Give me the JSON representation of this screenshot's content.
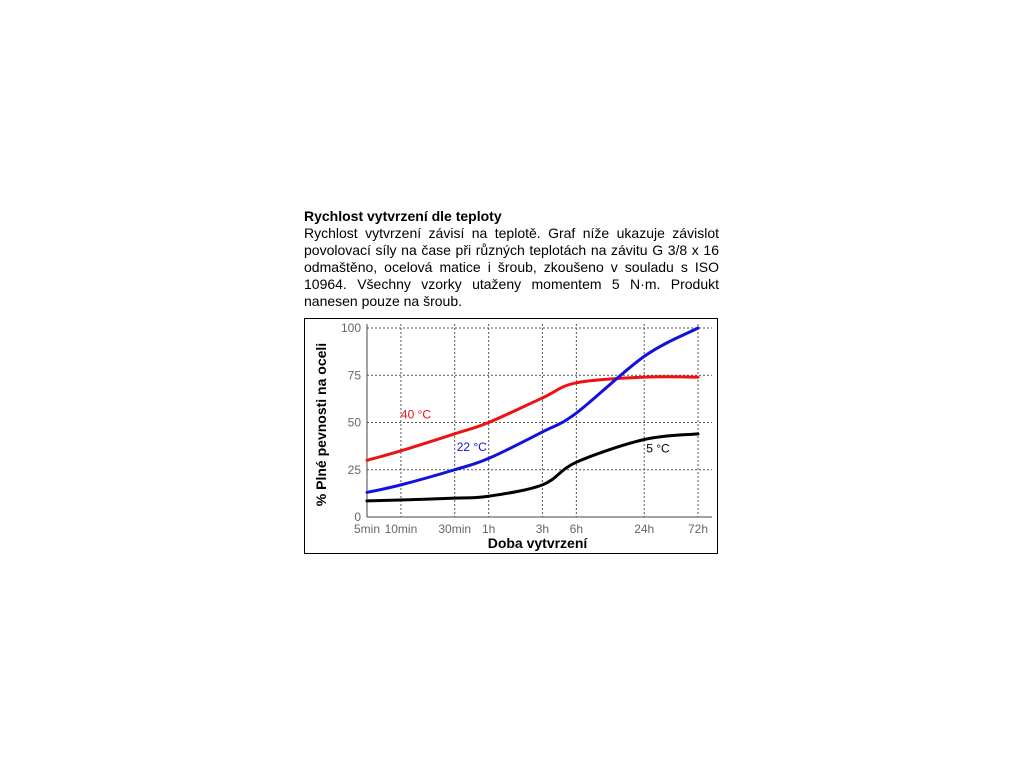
{
  "document": {
    "heading": "Rychlost vytvrzení dle teploty",
    "paragraph": "Rychlost vytvrzení závisí na teplotě. Graf níže ukazuje závislot povolovací síly na čase při různých teplotách na  závitu G 3/8 x 16 odmaštěno, ocelová matice i šroub, zkoušeno v souladu s ISO 10964. Všechny vzorky utaženy momentem 5 N·m. Produkt nanesen pouze na šroub."
  },
  "chart_data": {
    "type": "line",
    "xlabel": "Doba vytvrzení",
    "ylabel": "% Plné pevnosti na oceli",
    "x_categories": [
      "5min",
      "10min",
      "30min",
      "1h",
      "3h",
      "6h",
      "24h",
      "72h"
    ],
    "x_scale": "log",
    "ylim": [
      0,
      100
    ],
    "yticks": [
      0,
      25,
      50,
      75,
      100
    ],
    "grid": true,
    "series": [
      {
        "name": "40 °C",
        "color": "#ee1111",
        "points": [
          [
            "5min",
            30
          ],
          [
            "10min",
            35
          ],
          [
            "30min",
            44
          ],
          [
            "1h",
            50
          ],
          [
            "3h",
            63
          ],
          [
            "6h",
            71
          ],
          [
            "24h",
            74
          ],
          [
            "72h",
            74
          ]
        ]
      },
      {
        "name": "22 °C",
        "color": "#1111dd",
        "points": [
          [
            "5min",
            13
          ],
          [
            "10min",
            17
          ],
          [
            "30min",
            25
          ],
          [
            "1h",
            31
          ],
          [
            "3h",
            45
          ],
          [
            "6h",
            55
          ],
          [
            "24h",
            85
          ],
          [
            "72h",
            100
          ]
        ]
      },
      {
        "name": "5 °C",
        "color": "#000000",
        "points": [
          [
            "5min",
            8.5
          ],
          [
            "10min",
            9
          ],
          [
            "30min",
            10
          ],
          [
            "1h",
            11
          ],
          [
            "3h",
            17
          ],
          [
            "6h",
            29
          ],
          [
            "24h",
            41
          ],
          [
            "72h",
            44
          ]
        ]
      }
    ]
  }
}
